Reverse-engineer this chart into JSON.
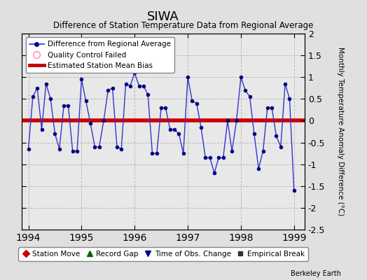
{
  "title": "SIWA",
  "subtitle": "Difference of Station Temperature Data from Regional Average",
  "ylabel": "Monthly Temperature Anomaly Difference (°C)",
  "bias": 0.0,
  "ylim": [
    -2.5,
    2.0
  ],
  "yticks": [
    -2.5,
    -2.0,
    -1.5,
    -1.0,
    -0.5,
    0.0,
    0.5,
    1.0,
    1.5,
    2.0
  ],
  "xlim_start": 1993.88,
  "xlim_end": 1999.2,
  "xticks": [
    1994,
    1995,
    1996,
    1997,
    1998,
    1999
  ],
  "line_color": "#3333cc",
  "marker_color": "#000080",
  "bias_color": "#cc0000",
  "background_color": "#e0e0e0",
  "fig_background_color": "#d0d0d0",
  "plot_background_color": "#e8e8e8",
  "months": [
    1994.0,
    1994.083,
    1994.167,
    1994.25,
    1994.333,
    1994.417,
    1994.5,
    1994.583,
    1994.667,
    1994.75,
    1994.833,
    1994.917,
    1995.0,
    1995.083,
    1995.167,
    1995.25,
    1995.333,
    1995.417,
    1995.5,
    1995.583,
    1995.667,
    1995.75,
    1995.833,
    1995.917,
    1996.0,
    1996.083,
    1996.167,
    1996.25,
    1996.333,
    1996.417,
    1996.5,
    1996.583,
    1996.667,
    1996.75,
    1996.833,
    1996.917,
    1997.0,
    1997.083,
    1997.167,
    1997.25,
    1997.333,
    1997.417,
    1997.5,
    1997.583,
    1997.667,
    1997.75,
    1997.833,
    1997.917,
    1998.0,
    1998.083,
    1998.167,
    1998.25,
    1998.333,
    1998.417,
    1998.5,
    1998.583,
    1998.667,
    1998.75,
    1998.833,
    1998.917,
    1999.0
  ],
  "values": [
    -0.65,
    0.55,
    0.75,
    -0.2,
    0.85,
    0.5,
    -0.3,
    -0.65,
    0.35,
    0.35,
    -0.7,
    -0.7,
    0.95,
    0.45,
    -0.05,
    -0.6,
    -0.6,
    0.0,
    0.7,
    0.75,
    -0.6,
    -0.65,
    0.85,
    0.8,
    1.1,
    0.8,
    0.8,
    0.6,
    -0.75,
    -0.75,
    0.3,
    0.3,
    -0.2,
    -0.2,
    -0.3,
    -0.75,
    1.0,
    0.45,
    0.4,
    -0.15,
    -0.85,
    -0.85,
    -1.2,
    -0.85,
    -0.85,
    0.0,
    -0.7,
    0.0,
    1.0,
    0.7,
    0.55,
    -0.3,
    -1.1,
    -0.7,
    0.3,
    0.3,
    -0.35,
    -0.6,
    0.85,
    0.5,
    -1.6
  ],
  "berkeley_earth_text": "Berkeley Earth",
  "grid_color": "#bbbbbb",
  "grid_linestyle": "--"
}
